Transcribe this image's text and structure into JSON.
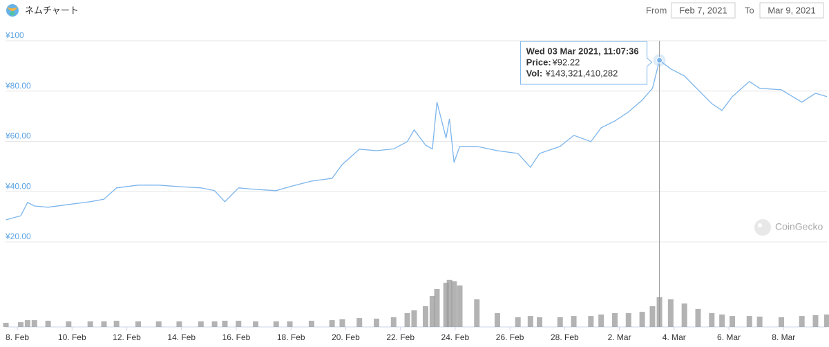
{
  "header": {
    "title": "ネムチャート",
    "from_label": "From",
    "from": "Feb 7, 2021",
    "to_label": "To",
    "to": "Mar 9, 2021",
    "watermark": "CoinGecko"
  },
  "chart_data": {
    "type": "line",
    "x": [
      "2021-02-07T14:00",
      "2021-02-08T03:00",
      "2021-02-08T09:00",
      "2021-02-08T15:00",
      "2021-02-09T03:00",
      "2021-02-09T21:00",
      "2021-02-10T16:00",
      "2021-02-11T04:00",
      "2021-02-11T15:00",
      "2021-02-12T10:00",
      "2021-02-13T04:00",
      "2021-02-13T22:00",
      "2021-02-14T17:00",
      "2021-02-15T05:00",
      "2021-02-15T14:00",
      "2021-02-16T02:00",
      "2021-02-16T17:00",
      "2021-02-17T11:00",
      "2021-02-17T23:00",
      "2021-02-18T18:00",
      "2021-02-19T12:00",
      "2021-02-19T21:00",
      "2021-02-20T12:00",
      "2021-02-21T03:00",
      "2021-02-21T18:00",
      "2021-02-22T06:00",
      "2021-02-22T12:00",
      "2021-02-22T22:00",
      "2021-02-23T04:00",
      "2021-02-23T08:00",
      "2021-02-23T16:00",
      "2021-02-23T19:00",
      "2021-02-23T23:00",
      "2021-02-24T04:00",
      "2021-02-24T19:00",
      "2021-02-25T13:00",
      "2021-02-26T07:00",
      "2021-02-26T18:00",
      "2021-02-27T02:00",
      "2021-02-27T20:00",
      "2021-02-28T08:00",
      "2021-02-28T23:00",
      "2021-03-01T08:00",
      "2021-03-01T20:00",
      "2021-03-02T08:00",
      "2021-03-02T20:00",
      "2021-03-03T05:00",
      "2021-03-03T11:07:36",
      "2021-03-03T21:00",
      "2021-03-04T09:00",
      "2021-03-04T21:00",
      "2021-03-05T09:00",
      "2021-03-05T18:00",
      "2021-03-06T03:00",
      "2021-03-06T18:00",
      "2021-03-07T03:00",
      "2021-03-07T22:00",
      "2021-03-08T16:00",
      "2021-03-09T04:00",
      "2021-03-09T14:00"
    ],
    "series": [
      {
        "color": "#7cb5ec",
        "values": [
          28.8,
          30.4,
          35.7,
          34.3,
          33.8,
          34.9,
          36.0,
          37.0,
          41.5,
          42.6,
          42.6,
          42.0,
          41.5,
          40.4,
          36.0,
          41.5,
          40.9,
          40.4,
          42.0,
          44.2,
          45.3,
          50.8,
          56.9,
          56.3,
          57.0,
          59.9,
          64.6,
          58.5,
          57.0,
          75.6,
          61.3,
          69.0,
          51.6,
          58.0,
          58.0,
          56.3,
          55.2,
          49.7,
          55.2,
          58.0,
          62.4,
          59.9,
          65.4,
          68.1,
          71.7,
          76.4,
          81.1,
          92.22,
          88.8,
          86.0,
          80.5,
          75.0,
          72.3,
          77.8,
          83.8,
          81.1,
          80.5,
          75.6,
          79.1,
          77.8
        ]
      },
      {
        "type": "column",
        "axis": "y2",
        "color": "#9a9a9a",
        "values": [
          20000000000,
          23000000000,
          33000000000,
          33000000000,
          30000000000,
          27000000000,
          27000000000,
          27000000000,
          30000000000,
          27000000000,
          27000000000,
          27000000000,
          27000000000,
          27000000000,
          30000000000,
          30000000000,
          27000000000,
          27000000000,
          27000000000,
          30000000000,
          33000000000,
          37000000000,
          43000000000,
          40000000000,
          47000000000,
          67000000000,
          80000000000,
          100000000000,
          150000000000,
          183000000000,
          213000000000,
          227000000000,
          220000000000,
          200000000000,
          133000000000,
          67000000000,
          47000000000,
          53000000000,
          47000000000,
          47000000000,
          53000000000,
          53000000000,
          60000000000,
          67000000000,
          67000000000,
          73000000000,
          100000000000,
          143321410282,
          133000000000,
          113000000000,
          87000000000,
          67000000000,
          60000000000,
          53000000000,
          53000000000,
          50000000000,
          47000000000,
          53000000000,
          57000000000,
          60000000000
        ]
      }
    ],
    "xlim": [
      "2021-02-07T13:40",
      "2021-03-09T14:00"
    ],
    "xticks": [
      {
        "value": "2021-02-08T00:00",
        "label": "8. Feb"
      },
      {
        "value": "2021-02-10T00:00",
        "label": "10. Feb"
      },
      {
        "value": "2021-02-12T00:00",
        "label": "12. Feb"
      },
      {
        "value": "2021-02-14T00:00",
        "label": "14. Feb"
      },
      {
        "value": "2021-02-16T00:00",
        "label": "16. Feb"
      },
      {
        "value": "2021-02-18T00:00",
        "label": "18. Feb"
      },
      {
        "value": "2021-02-20T00:00",
        "label": "20. Feb"
      },
      {
        "value": "2021-02-22T00:00",
        "label": "22. Feb"
      },
      {
        "value": "2021-02-24T00:00",
        "label": "24. Feb"
      },
      {
        "value": "2021-02-26T00:00",
        "label": "26. Feb"
      },
      {
        "value": "2021-02-28T00:00",
        "label": "28. Feb"
      },
      {
        "value": "2021-03-02T00:00",
        "label": "2. Mar"
      },
      {
        "value": "2021-03-04T00:00",
        "label": "4. Mar"
      },
      {
        "value": "2021-03-06T00:00",
        "label": "6. Mar"
      },
      {
        "value": "2021-03-08T00:00",
        "label": "8. Mar"
      }
    ],
    "ylim": [
      20,
      100
    ],
    "yticks": [
      {
        "value": 20,
        "label": "¥20.00"
      },
      {
        "value": 40,
        "label": "¥40.00"
      },
      {
        "value": 60,
        "label": "¥60.00"
      },
      {
        "value": 80,
        "label": "¥80.00"
      },
      {
        "value": 100,
        "label": "¥100"
      }
    ],
    "y2lim": [
      0,
      343000000000
    ],
    "grid": true,
    "tooltip": {
      "date": "Wed 03 Mar 2021, 11:07:36",
      "price_label": "Price:",
      "price": "¥92.22",
      "vol_label": "Vol:",
      "vol": "¥143,321,410,282"
    }
  }
}
